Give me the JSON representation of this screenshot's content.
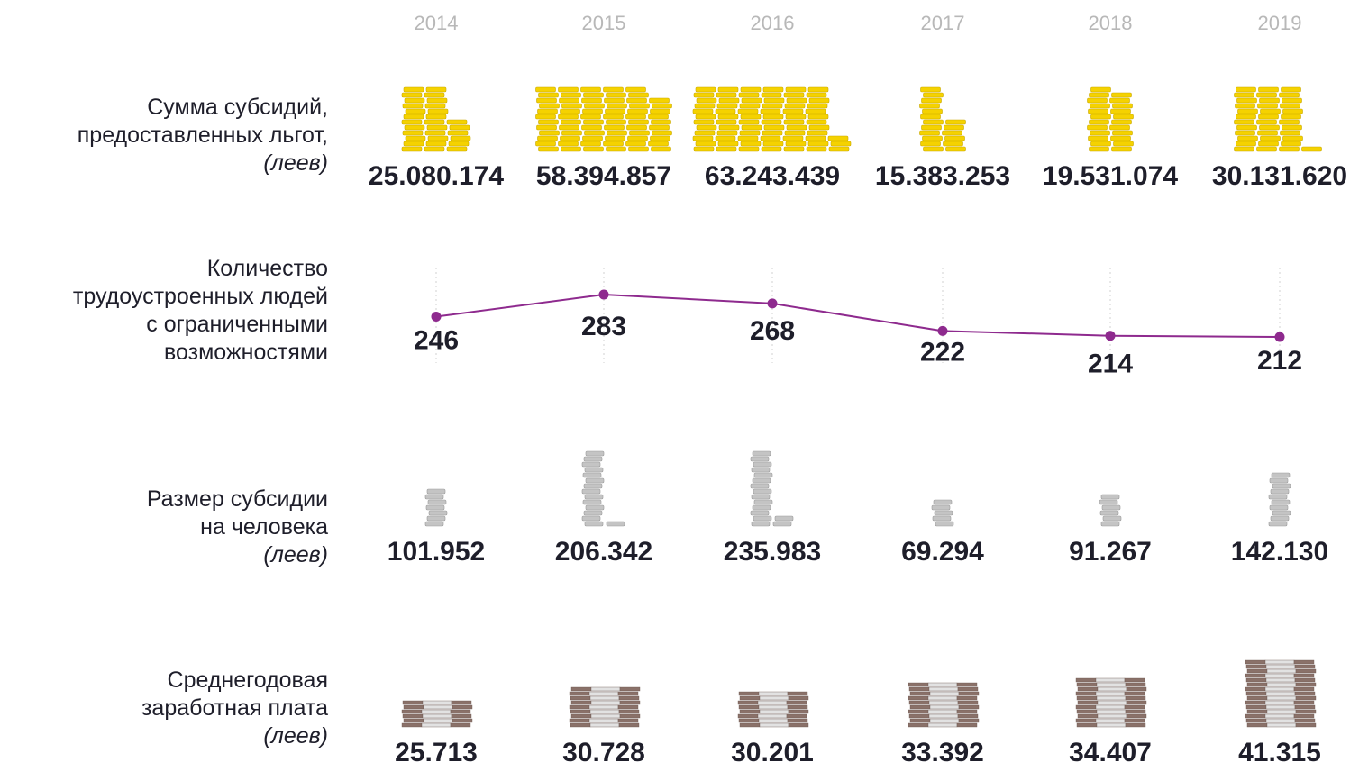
{
  "years": [
    "2014",
    "2015",
    "2016",
    "2017",
    "2018",
    "2019"
  ],
  "colors": {
    "gold": "#f5d200",
    "gold_edge": "#c9a800",
    "silver": "#c4c4c4",
    "silver_edge": "#9a9a9a",
    "note_brown": "#8a7169",
    "note_light": "#e2e2e2",
    "line": "#8e2a8e",
    "text": "#1e1e2a",
    "year_text": "#b8b8b8"
  },
  "rows": [
    {
      "id": "subsidies",
      "label_lines": [
        "Сумма субсидий,",
        "предоставленных льгот,"
      ],
      "unit": "(леев)",
      "icon": "gold-coin-stack-icon",
      "values": [
        "25.080.174",
        "58.394.857",
        "63.243.439",
        "15.383.253",
        "19.531.074",
        "30.131.620"
      ]
    },
    {
      "id": "employed",
      "label_lines": [
        "Количество",
        "трудоустроенных людей",
        "с ограниченными",
        "возможностями"
      ],
      "unit": "",
      "icon": "",
      "values": [
        "246",
        "283",
        "268",
        "222",
        "214",
        "212"
      ]
    },
    {
      "id": "subsidy_per_person",
      "label_lines": [
        "Размер субсидии",
        "на человека"
      ],
      "unit": "(леев)",
      "icon": "silver-coin-stack-icon",
      "values": [
        "101.952",
        "206.342",
        "235.983",
        "69.294",
        "91.267",
        "142.130"
      ]
    },
    {
      "id": "avg_salary",
      "label_lines": [
        "Среднегодовая",
        "заработная плата"
      ],
      "unit": "(леев)",
      "icon": "banknote-stack-icon",
      "values": [
        "25.713",
        "30.728",
        "30.201",
        "33.392",
        "34.407",
        "41.315"
      ]
    }
  ],
  "chart_data": [
    {
      "type": "bar",
      "categories": [
        "2014",
        "2015",
        "2016",
        "2017",
        "2018",
        "2019"
      ],
      "values": [
        25080174,
        58394857,
        63243439,
        15383253,
        19531074,
        30131620
      ],
      "title": "Сумма субсидий, предоставленных льгот, (леев)"
    },
    {
      "type": "line",
      "x": [
        "2014",
        "2015",
        "2016",
        "2017",
        "2018",
        "2019"
      ],
      "series": [
        {
          "values": [
            246,
            283,
            268,
            222,
            214,
            212
          ]
        }
      ],
      "title": "Количество трудоустроенных людей с ограниченными возможностями",
      "grid": false
    },
    {
      "type": "bar",
      "categories": [
        "2014",
        "2015",
        "2016",
        "2017",
        "2018",
        "2019"
      ],
      "values": [
        101952,
        206342,
        235983,
        69294,
        91267,
        142130
      ],
      "title": "Размер субсидии на человека (леев)"
    },
    {
      "type": "bar",
      "categories": [
        "2014",
        "2015",
        "2016",
        "2017",
        "2018",
        "2019"
      ],
      "values": [
        25713,
        30728,
        30201,
        33392,
        34407,
        41315
      ],
      "title": "Среднегодовая заработная плата (леев)"
    }
  ]
}
